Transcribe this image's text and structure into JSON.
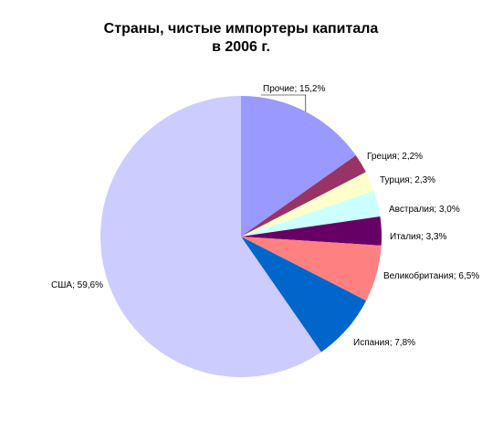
{
  "chart_data": {
    "type": "pie",
    "title_line1": "Страны, чистые импортеры капитала",
    "title_line2": "в 2006 г.",
    "slices": [
      {
        "label": "Прочие; 15,2%",
        "value": 15.2,
        "color": "#9999FF"
      },
      {
        "label": "Греция; 2,2%",
        "value": 2.2,
        "color": "#993366"
      },
      {
        "label": "Турция; 2,3%",
        "value": 2.3,
        "color": "#FFFFCC"
      },
      {
        "label": "Австралия; 3,0%",
        "value": 3.0,
        "color": "#CCFFFF"
      },
      {
        "label": "Италия; 3,3%",
        "value": 3.3,
        "color": "#660066"
      },
      {
        "label": "Великобритания; 6,5%",
        "value": 6.5,
        "color": "#FF8080"
      },
      {
        "label": "Испания; 7,8%",
        "value": 7.8,
        "color": "#0066CC"
      },
      {
        "label": "США; 59,6%",
        "value": 59.6,
        "color": "#CCCCFF"
      }
    ],
    "legend": "none"
  }
}
